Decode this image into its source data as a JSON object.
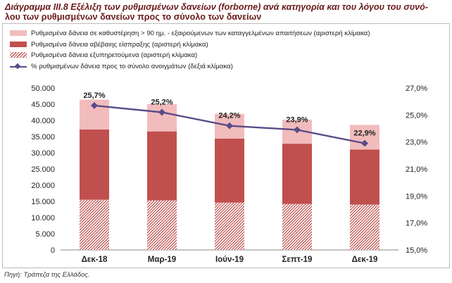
{
  "title": {
    "line1": "Διάγραμμα ΙΙΙ.8 Εξέλιξη των ρυθμισμένων δανείων (forborne) ανά κατηγορία και του λόγου του συνό-",
    "line2": "λου των ρυθμισμένων δανείων προς το σύνολο των δανείων"
  },
  "source": "Πηγή: Τράπεζα της Ελλάδος.",
  "colors": {
    "pink": "#f2bcbc",
    "red": "#c0504d",
    "line": "#5b4b8a"
  },
  "chart_data": {
    "type": "bar",
    "stacked": true,
    "categories": [
      "Δεκ-18",
      "Μαρ-19",
      "Ιούν-19",
      "Σεπτ-19",
      "Δεκ-19"
    ],
    "series": [
      {
        "name": "Ρυθμισμένα δάνεια εξυπηρετούμενα (αριστερή κλίμακα)",
        "axis": "left",
        "style": "hatch",
        "values": [
          15500,
          15300,
          14600,
          14200,
          14000
        ]
      },
      {
        "name": "Ρυθμισμένα δάνεια αβέβαιης είσπραξης (αριστερή κλίμακα)",
        "axis": "left",
        "style": "red",
        "values": [
          21700,
          21300,
          19800,
          18600,
          17000
        ]
      },
      {
        "name": "Ρυθμισμένα δάνεια σε καθυστέρηση > 90 ημ. - εξαιρούμενων των καταγγελμένων απαιτήσεων (αριστερή κλίμακα)",
        "axis": "left",
        "style": "pink",
        "values": [
          9200,
          8400,
          7600,
          7400,
          7600
        ]
      },
      {
        "name": "% ρυθμισμένων δάνεια προς το σύνολο ανοιγμάτων (δεξιά κλίμακα)",
        "axis": "right",
        "style": "line",
        "values": [
          25.7,
          25.2,
          24.2,
          23.9,
          22.9
        ],
        "labels": [
          "25,7%",
          "25,2%",
          "24,2%",
          "23,9%",
          "22,9%"
        ]
      }
    ],
    "legend_order": [
      2,
      1,
      0,
      3
    ],
    "left_axis": {
      "min": 0,
      "max": 50000,
      "step": 5000,
      "ticks": [
        "0",
        "5.000",
        "10.000",
        "15.000",
        "20.000",
        "25.000",
        "30.000",
        "35.000",
        "40.000",
        "45.000",
        "50.000"
      ]
    },
    "right_axis": {
      "min": 15,
      "max": 27,
      "step": 2,
      "ticks": [
        "15,0%",
        "17,0%",
        "19,0%",
        "21,0%",
        "23,0%",
        "25,0%",
        "27,0%"
      ]
    }
  }
}
